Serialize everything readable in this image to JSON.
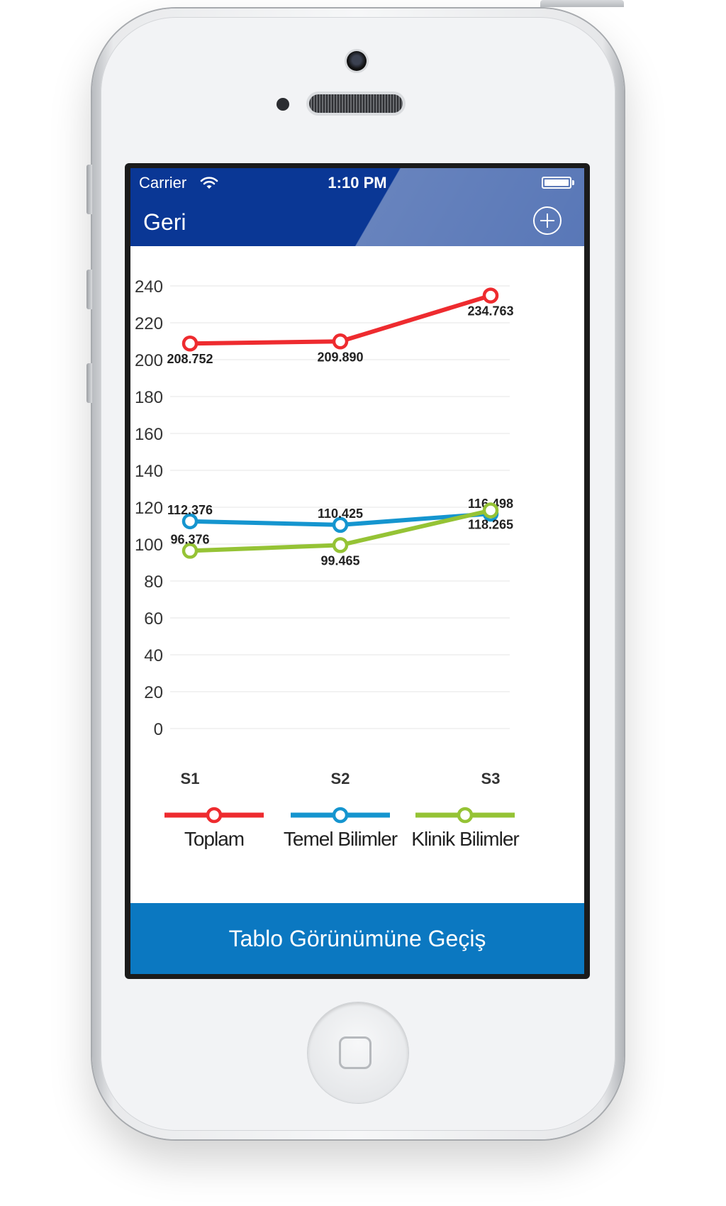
{
  "status_bar": {
    "carrier": "Carrier",
    "time": "1:10 PM"
  },
  "nav": {
    "back_label": "Geri",
    "add_icon": "plus-circle-icon"
  },
  "chart_data": {
    "type": "line",
    "categories": [
      "S1",
      "S2",
      "S3"
    ],
    "ylim": [
      0,
      240
    ],
    "yticks": [
      0,
      20,
      40,
      60,
      80,
      100,
      120,
      140,
      160,
      180,
      200,
      220,
      240
    ],
    "grid": true,
    "series": [
      {
        "name": "Toplam",
        "color": "#ee2b2f",
        "values": [
          208.752,
          209.89,
          234.763
        ],
        "labels": [
          "208.752",
          "209.890",
          "234.763"
        ]
      },
      {
        "name": "Temel Bilimler",
        "color": "#1595cf",
        "values": [
          112.376,
          110.425,
          116.498
        ],
        "labels": [
          "112.376",
          "110.425",
          "116.498"
        ]
      },
      {
        "name": "Klinik Bilimler",
        "color": "#95c335",
        "values": [
          96.376,
          99.465,
          118.265
        ],
        "labels": [
          "96.376",
          "99.465",
          "118.265"
        ]
      }
    ]
  },
  "bottom_button": {
    "label": "Tablo Görünümüne Geçiş"
  }
}
